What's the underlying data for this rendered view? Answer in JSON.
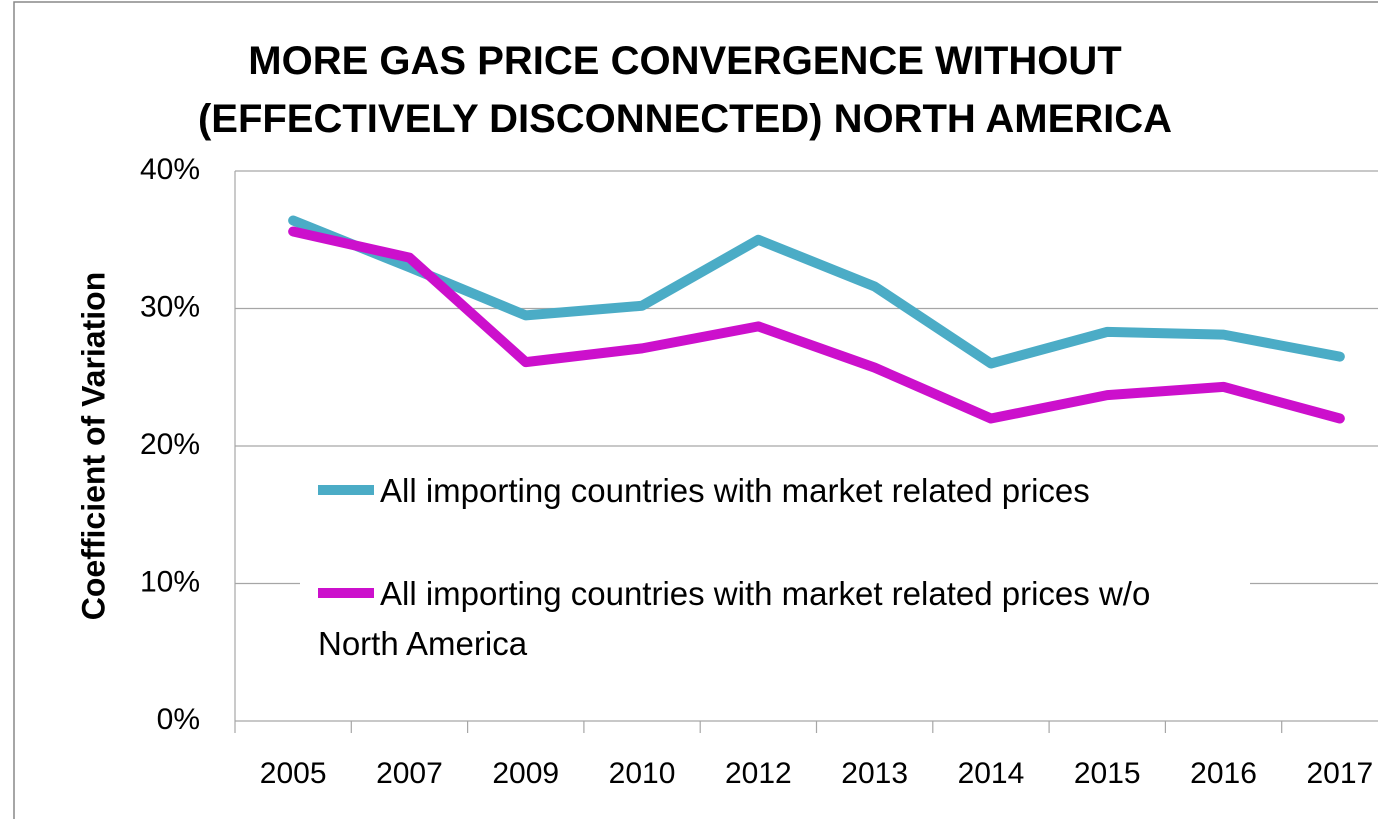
{
  "chart_data": {
    "type": "line",
    "title": "MORE GAS PRICE CONVERGENCE WITHOUT (EFFECTIVELY DISCONNECTED) NORTH AMERICA",
    "y_label": "Coefficient of Variation",
    "categories": [
      "2005",
      "2007",
      "2009",
      "2010",
      "2012",
      "2013",
      "2014",
      "2015",
      "2016",
      "2017"
    ],
    "series": [
      {
        "name": "All importing countries with market related prices",
        "color": "#4bacc6",
        "values": [
          36.4,
          33.0,
          29.5,
          30.2,
          35.0,
          31.6,
          26.0,
          28.3,
          28.1,
          26.5
        ]
      },
      {
        "name": "All importing countries with market related prices w/o North America",
        "color": "#cc10cc",
        "values": [
          35.6,
          33.7,
          26.1,
          27.1,
          28.7,
          25.7,
          22.0,
          23.7,
          24.3,
          22.0
        ]
      }
    ],
    "ylim": [
      0,
      40
    ],
    "yticks": [
      {
        "value": 0,
        "label": "0%"
      },
      {
        "value": 10,
        "label": "10%"
      },
      {
        "value": 20,
        "label": "20%"
      },
      {
        "value": 30,
        "label": "30%"
      },
      {
        "value": 40,
        "label": "40%"
      }
    ],
    "grid": true
  }
}
